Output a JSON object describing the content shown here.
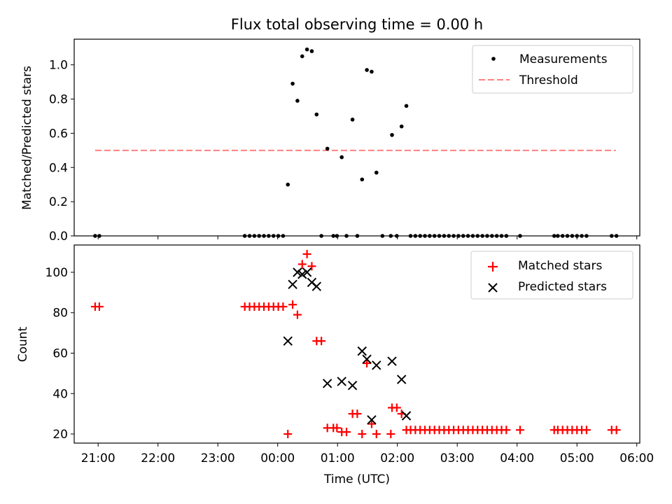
{
  "chart_data": {
    "title": "Flux total observing time = 0.00 h",
    "xlabel": "Time (UTC)",
    "x_unit": "hours relative to 00:00 UTC",
    "xlim": [
      -3.4,
      6.05
    ],
    "x_tick_values": [
      -3,
      -2,
      -1,
      0,
      1,
      2,
      3,
      4,
      5,
      6
    ],
    "x_tick_labels": [
      "21:00",
      "22:00",
      "23:00",
      "00:00",
      "01:00",
      "02:00",
      "03:00",
      "04:00",
      "05:00",
      "06:00"
    ],
    "top": {
      "type": "scatter",
      "ylabel": "Matched/Predicted stars",
      "ylim": [
        0,
        1.15
      ],
      "y_ticks": [
        "0.0",
        "0.2",
        "0.4",
        "0.6",
        "0.8",
        "1.0"
      ],
      "y_tick_values": [
        0,
        0.2,
        0.4,
        0.6,
        0.8,
        1.0
      ],
      "legend": [
        "Measurements",
        "Threshold"
      ],
      "threshold": {
        "value": 0.5,
        "x_start": -3.05,
        "x_end": 5.65,
        "color": "#ff8080"
      },
      "measurements": [
        [
          -3.05,
          0
        ],
        [
          -2.98,
          0
        ],
        [
          -0.55,
          0
        ],
        [
          -0.47,
          0
        ],
        [
          -0.39,
          0
        ],
        [
          -0.31,
          0
        ],
        [
          -0.23,
          0
        ],
        [
          -0.15,
          0
        ],
        [
          -0.07,
          0
        ],
        [
          0.01,
          0
        ],
        [
          0.09,
          0
        ],
        [
          0.17,
          0.3
        ],
        [
          0.25,
          0.89
        ],
        [
          0.33,
          0.79
        ],
        [
          0.41,
          1.05
        ],
        [
          0.49,
          1.09
        ],
        [
          0.57,
          1.08
        ],
        [
          0.65,
          0.71
        ],
        [
          0.73,
          0
        ],
        [
          0.83,
          0.51
        ],
        [
          0.93,
          0
        ],
        [
          0.99,
          0
        ],
        [
          1.07,
          0.46
        ],
        [
          1.15,
          0
        ],
        [
          1.25,
          0.68
        ],
        [
          1.33,
          0
        ],
        [
          1.41,
          0.33
        ],
        [
          1.49,
          0.97
        ],
        [
          1.57,
          0.96
        ],
        [
          1.65,
          0.37
        ],
        [
          1.75,
          0
        ],
        [
          1.89,
          0
        ],
        [
          1.91,
          0.59
        ],
        [
          1.99,
          0
        ],
        [
          2.07,
          0.64
        ],
        [
          2.15,
          0.76
        ],
        [
          2.22,
          0
        ],
        [
          2.3,
          0
        ],
        [
          2.38,
          0
        ],
        [
          2.46,
          0
        ],
        [
          2.54,
          0
        ],
        [
          2.62,
          0
        ],
        [
          2.7,
          0
        ],
        [
          2.78,
          0
        ],
        [
          2.86,
          0
        ],
        [
          2.94,
          0
        ],
        [
          3.02,
          0
        ],
        [
          3.1,
          0
        ],
        [
          3.18,
          0
        ],
        [
          3.26,
          0
        ],
        [
          3.34,
          0
        ],
        [
          3.42,
          0
        ],
        [
          3.5,
          0
        ],
        [
          3.58,
          0
        ],
        [
          3.66,
          0
        ],
        [
          3.74,
          0
        ],
        [
          3.82,
          0
        ],
        [
          4.05,
          0
        ],
        [
          4.62,
          0
        ],
        [
          4.68,
          0
        ],
        [
          4.76,
          0
        ],
        [
          4.84,
          0
        ],
        [
          4.92,
          0
        ],
        [
          5.0,
          0
        ],
        [
          5.08,
          0
        ],
        [
          5.16,
          0
        ],
        [
          5.58,
          0
        ],
        [
          5.66,
          0
        ]
      ]
    },
    "bottom": {
      "type": "scatter",
      "ylabel": "Count",
      "ylim": [
        15.5,
        113.5
      ],
      "y_ticks": [
        "20",
        "40",
        "60",
        "80",
        "100"
      ],
      "y_tick_values": [
        20,
        40,
        60,
        80,
        100
      ],
      "legend": [
        "Matched stars",
        "Predicted stars"
      ],
      "series": [
        {
          "name": "Matched stars",
          "marker": "+",
          "color": "#ff0000",
          "points": [
            [
              -3.05,
              83
            ],
            [
              -2.98,
              83
            ],
            [
              -0.55,
              83
            ],
            [
              -0.47,
              83
            ],
            [
              -0.39,
              83
            ],
            [
              -0.31,
              83
            ],
            [
              -0.23,
              83
            ],
            [
              -0.15,
              83
            ],
            [
              -0.07,
              83
            ],
            [
              0.01,
              83
            ],
            [
              0.09,
              83
            ],
            [
              0.17,
              20
            ],
            [
              0.25,
              84
            ],
            [
              0.33,
              79
            ],
            [
              0.41,
              104
            ],
            [
              0.49,
              109
            ],
            [
              0.57,
              103
            ],
            [
              0.65,
              66
            ],
            [
              0.73,
              66
            ],
            [
              0.83,
              23
            ],
            [
              0.93,
              23
            ],
            [
              0.99,
              23
            ],
            [
              1.07,
              21
            ],
            [
              1.15,
              21
            ],
            [
              1.25,
              30
            ],
            [
              1.33,
              30
            ],
            [
              1.41,
              20
            ],
            [
              1.49,
              55
            ],
            [
              1.57,
              25
            ],
            [
              1.65,
              20
            ],
            [
              1.89,
              20
            ],
            [
              1.91,
              33
            ],
            [
              1.99,
              33
            ],
            [
              2.07,
              30
            ],
            [
              2.15,
              22
            ],
            [
              2.22,
              22
            ],
            [
              2.3,
              22
            ],
            [
              2.38,
              22
            ],
            [
              2.46,
              22
            ],
            [
              2.54,
              22
            ],
            [
              2.62,
              22
            ],
            [
              2.7,
              22
            ],
            [
              2.78,
              22
            ],
            [
              2.86,
              22
            ],
            [
              2.94,
              22
            ],
            [
              3.02,
              22
            ],
            [
              3.1,
              22
            ],
            [
              3.18,
              22
            ],
            [
              3.26,
              22
            ],
            [
              3.34,
              22
            ],
            [
              3.42,
              22
            ],
            [
              3.5,
              22
            ],
            [
              3.58,
              22
            ],
            [
              3.66,
              22
            ],
            [
              3.74,
              22
            ],
            [
              3.82,
              22
            ],
            [
              4.05,
              22
            ],
            [
              4.62,
              22
            ],
            [
              4.68,
              22
            ],
            [
              4.76,
              22
            ],
            [
              4.84,
              22
            ],
            [
              4.92,
              22
            ],
            [
              5.0,
              22
            ],
            [
              5.08,
              22
            ],
            [
              5.16,
              22
            ],
            [
              5.58,
              22
            ],
            [
              5.66,
              22
            ]
          ]
        },
        {
          "name": "Predicted stars",
          "marker": "x",
          "color": "#000000",
          "points": [
            [
              0.17,
              66
            ],
            [
              0.25,
              94
            ],
            [
              0.33,
              100
            ],
            [
              0.41,
              99
            ],
            [
              0.49,
              100
            ],
            [
              0.57,
              95
            ],
            [
              0.65,
              93
            ],
            [
              0.83,
              45
            ],
            [
              1.07,
              46
            ],
            [
              1.25,
              44
            ],
            [
              1.41,
              61
            ],
            [
              1.49,
              57
            ],
            [
              1.57,
              27
            ],
            [
              1.65,
              54
            ],
            [
              1.91,
              56
            ],
            [
              2.07,
              47
            ],
            [
              2.15,
              29
            ]
          ]
        }
      ]
    }
  }
}
